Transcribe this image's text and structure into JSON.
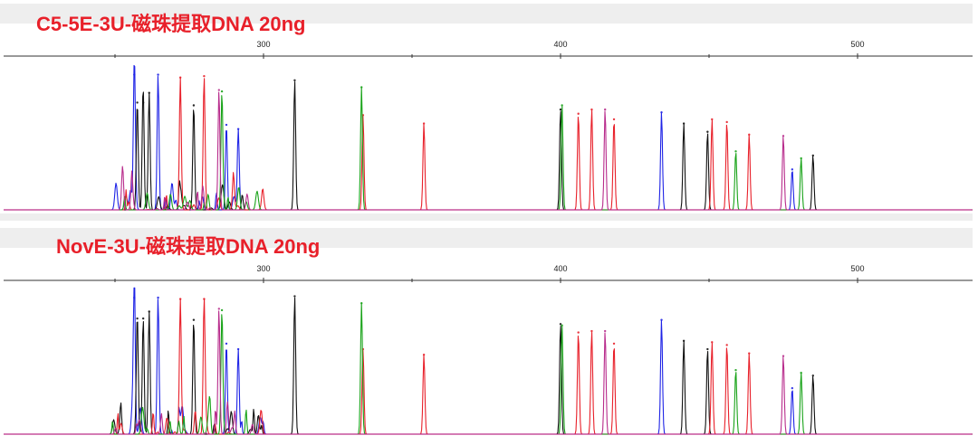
{
  "chart_data": [
    {
      "type": "line",
      "chart_subtype": "capillary electrophoresis electropherogram (multi-dye fragment peaks)",
      "title": "C5-5E-3U-磁珠提取DNA 20ng",
      "xlabel": "",
      "ylabel": "",
      "xlim": [
        249,
        541
      ],
      "ylim": [
        0,
        1
      ],
      "x_ticks": [
        300,
        400,
        500
      ],
      "x_tick_labels": [
        "300",
        "400",
        "500"
      ],
      "grid": false,
      "legend": "none",
      "series": [
        {
          "color": "#1f24e6",
          "peaks": [
            [
              256.5,
              0.97
            ],
            [
              264.5,
              0.97
            ],
            [
              287.5,
              0.61
            ],
            [
              291.5,
              0.58
            ],
            [
              434,
              0.7
            ],
            [
              478,
              0.29
            ]
          ]
        },
        {
          "color": "#111111",
          "peaks": [
            [
              257.5,
              0.77
            ],
            [
              259.5,
              0.77
            ],
            [
              261.5,
              0.84
            ],
            [
              276.5,
              0.75
            ],
            [
              310.5,
              0.93
            ],
            [
              400,
              0.72
            ],
            [
              441.5,
              0.62
            ],
            [
              449.5,
              0.56
            ],
            [
              485,
              0.39
            ]
          ]
        },
        {
          "color": "#e8202a",
          "peaks": [
            [
              272,
              0.95
            ],
            [
              280,
              0.96
            ],
            [
              333.5,
              0.68
            ],
            [
              354,
              0.62
            ],
            [
              406,
              0.69
            ],
            [
              410.5,
              0.72
            ],
            [
              418,
              0.65
            ],
            [
              451,
              0.65
            ],
            [
              456,
              0.63
            ],
            [
              463.5,
              0.54
            ]
          ]
        },
        {
          "color": "#19a319",
          "peaks": [
            [
              286,
              0.85
            ],
            [
              333,
              0.88
            ],
            [
              400.5,
              0.75
            ],
            [
              459,
              0.42
            ],
            [
              481,
              0.37
            ]
          ]
        },
        {
          "color": "#b82c8c",
          "peaks": [
            [
              285,
              0.86
            ],
            [
              415,
              0.72
            ],
            [
              475,
              0.53
            ]
          ]
        }
      ],
      "baseline_noise": {
        "region": [
          249,
          300
        ],
        "max_height": 0.2
      }
    },
    {
      "type": "line",
      "chart_subtype": "capillary electrophoresis electropherogram (multi-dye fragment peaks)",
      "title": "NovE-3U-磁珠提取DNA 20ng",
      "xlabel": "",
      "ylabel": "",
      "xlim": [
        249,
        541
      ],
      "ylim": [
        0,
        1
      ],
      "x_ticks": [
        300,
        400,
        500
      ],
      "x_tick_labels": [
        "300",
        "400",
        "500"
      ],
      "grid": false,
      "legend": "none",
      "series": [
        {
          "color": "#1f24e6",
          "peaks": [
            [
              256.5,
              0.98
            ],
            [
              264.5,
              0.98
            ],
            [
              287.5,
              0.65
            ],
            [
              291.5,
              0.61
            ],
            [
              434,
              0.82
            ],
            [
              478,
              0.33
            ]
          ]
        },
        {
          "color": "#111111",
          "peaks": [
            [
              257.5,
              0.83
            ],
            [
              259.5,
              0.83
            ],
            [
              261.5,
              0.88
            ],
            [
              276.5,
              0.82
            ],
            [
              310.5,
              0.99
            ],
            [
              400,
              0.79
            ],
            [
              441.5,
              0.67
            ],
            [
              449.5,
              0.61
            ],
            [
              485,
              0.42
            ]
          ]
        },
        {
          "color": "#e8202a",
          "peaks": [
            [
              272,
              0.97
            ],
            [
              280,
              0.97
            ],
            [
              333.5,
              0.61
            ],
            [
              354,
              0.57
            ],
            [
              406,
              0.73
            ],
            [
              410.5,
              0.74
            ],
            [
              418,
              0.65
            ],
            [
              451,
              0.66
            ],
            [
              456,
              0.64
            ],
            [
              463.5,
              0.58
            ]
          ]
        },
        {
          "color": "#19a319",
          "peaks": [
            [
              286,
              0.89
            ],
            [
              333,
              0.94
            ],
            [
              400.5,
              0.78
            ],
            [
              459,
              0.46
            ],
            [
              481,
              0.44
            ]
          ]
        },
        {
          "color": "#b82c8c",
          "peaks": [
            [
              285,
              0.9
            ],
            [
              415,
              0.74
            ],
            [
              475,
              0.56
            ]
          ]
        }
      ],
      "baseline_noise": {
        "region": [
          249,
          300
        ],
        "max_height": 0.2
      }
    }
  ]
}
